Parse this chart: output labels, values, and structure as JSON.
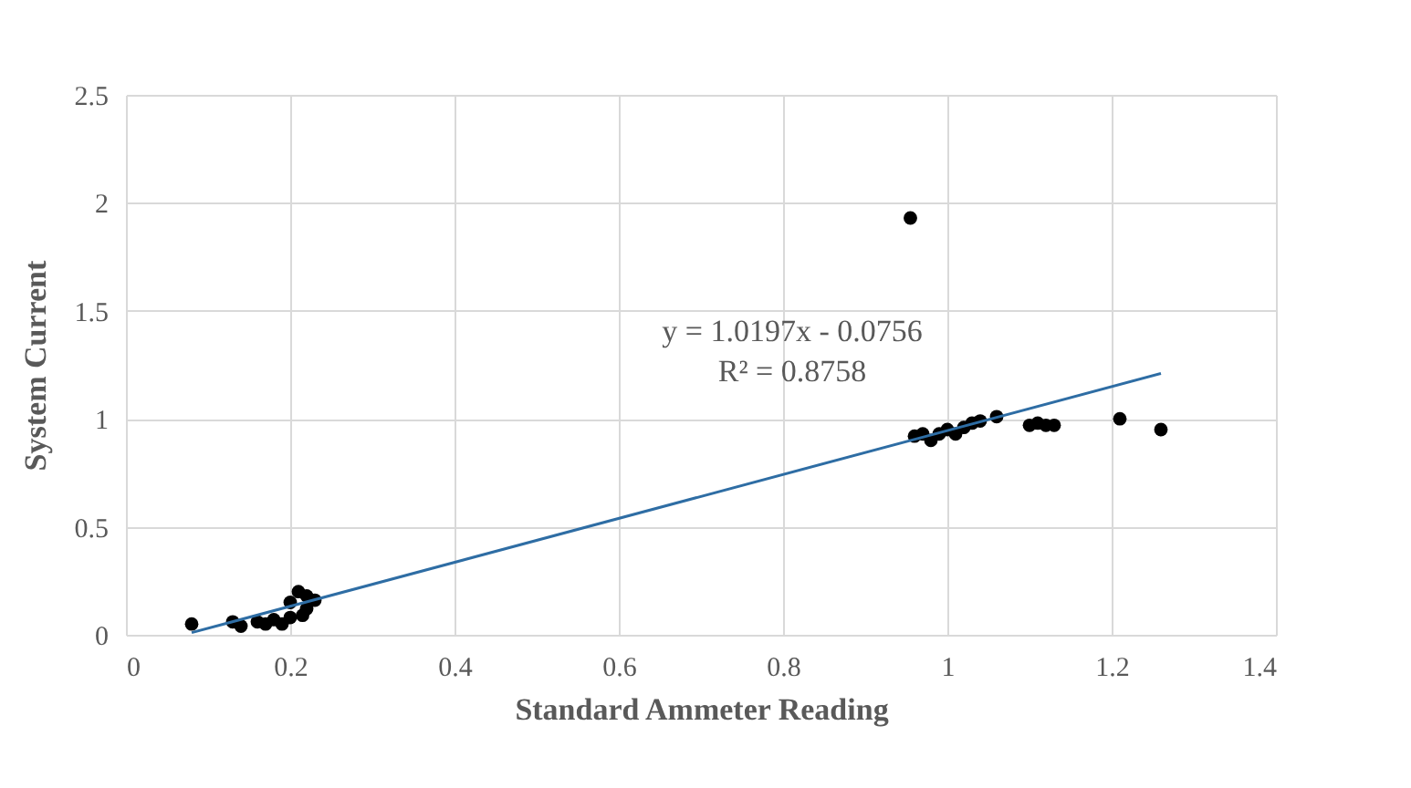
{
  "chart_data": {
    "type": "scatter",
    "xlabel": "Standard Ammeter Reading",
    "ylabel": "System Current",
    "xlim": [
      0,
      1.4
    ],
    "xticks": [
      0,
      0.2,
      0.4,
      0.6,
      0.8,
      1,
      1.2,
      1.4
    ],
    "ylim": [
      0,
      2.5
    ],
    "yticks": [
      0,
      0.5,
      1,
      1.5,
      2,
      2.5
    ],
    "grid": true,
    "series": [
      {
        "color": "#000000",
        "marker": "circle",
        "x": [
          0.08,
          0.13,
          0.14,
          0.16,
          0.17,
          0.18,
          0.19,
          0.2,
          0.2,
          0.21,
          0.22,
          0.215,
          0.23,
          0.22,
          0.955,
          0.96,
          0.97,
          0.98,
          0.99,
          1.0,
          1.01,
          1.02,
          1.03,
          1.04,
          1.06,
          1.1,
          1.11,
          1.12,
          1.13,
          1.21,
          1.26
        ],
        "values": [
          0.05,
          0.06,
          0.04,
          0.06,
          0.05,
          0.07,
          0.05,
          0.08,
          0.15,
          0.2,
          0.18,
          0.09,
          0.16,
          0.12,
          1.93,
          0.92,
          0.93,
          0.9,
          0.93,
          0.95,
          0.93,
          0.96,
          0.98,
          0.99,
          1.01,
          0.97,
          0.98,
          0.97,
          0.97,
          1.0,
          0.95
        ]
      },
      {
        "type": "line",
        "color": "#2e6da4",
        "line_style": "solid",
        "x": [
          0.08,
          1.26
        ],
        "values": [
          0.01,
          1.21
        ]
      }
    ],
    "annotations": [
      "y = 1.0197x - 0.0756",
      "R² = 0.8758"
    ]
  }
}
